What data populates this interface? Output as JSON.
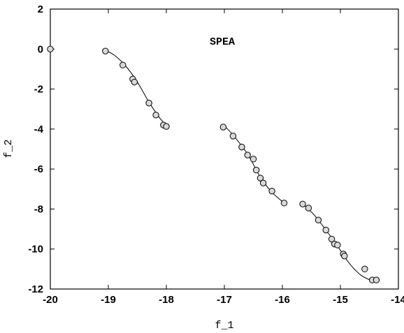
{
  "chart_data": {
    "type": "scatter",
    "title": "SPEA",
    "xlabel": "f_1",
    "ylabel": "f_2",
    "xlim": [
      -20,
      -14
    ],
    "ylim": [
      -12,
      2
    ],
    "xticks": [
      -20,
      -19,
      -18,
      -17,
      -16,
      -15,
      -14
    ],
    "yticks": [
      2,
      0,
      -2,
      -4,
      -6,
      -8,
      -10,
      -12
    ],
    "grid": false,
    "points": [
      {
        "x": -20.0,
        "y": 0.0
      },
      {
        "x": -19.05,
        "y": -0.1
      },
      {
        "x": -18.75,
        "y": -0.8
      },
      {
        "x": -18.58,
        "y": -1.5
      },
      {
        "x": -18.55,
        "y": -1.65
      },
      {
        "x": -18.3,
        "y": -2.7
      },
      {
        "x": -18.18,
        "y": -3.3
      },
      {
        "x": -18.05,
        "y": -3.8
      },
      {
        "x": -18.0,
        "y": -3.87
      },
      {
        "x": -17.02,
        "y": -3.9
      },
      {
        "x": -16.85,
        "y": -4.35
      },
      {
        "x": -16.7,
        "y": -4.9
      },
      {
        "x": -16.6,
        "y": -5.3
      },
      {
        "x": -16.5,
        "y": -5.5
      },
      {
        "x": -16.45,
        "y": -6.05
      },
      {
        "x": -16.38,
        "y": -6.45
      },
      {
        "x": -16.33,
        "y": -6.7
      },
      {
        "x": -16.18,
        "y": -7.1
      },
      {
        "x": -15.97,
        "y": -7.7
      },
      {
        "x": -15.65,
        "y": -7.75
      },
      {
        "x": -15.55,
        "y": -7.95
      },
      {
        "x": -15.38,
        "y": -8.55
      },
      {
        "x": -15.25,
        "y": -9.05
      },
      {
        "x": -15.15,
        "y": -9.5
      },
      {
        "x": -15.1,
        "y": -9.75
      },
      {
        "x": -15.05,
        "y": -9.8
      },
      {
        "x": -14.95,
        "y": -10.25
      },
      {
        "x": -14.93,
        "y": -10.35
      },
      {
        "x": -14.58,
        "y": -11.0
      },
      {
        "x": -14.45,
        "y": -11.55
      },
      {
        "x": -14.38,
        "y": -11.55
      }
    ],
    "curves": [
      {
        "x": [
          -19.1,
          -18.9,
          -18.7,
          -18.5,
          -18.3,
          -18.1,
          -17.95
        ],
        "y": [
          0.0,
          -0.3,
          -0.85,
          -1.65,
          -2.65,
          -3.5,
          -3.9
        ]
      },
      {
        "x": [
          -17.03,
          -16.85,
          -16.6,
          -16.4,
          -16.2,
          -15.97
        ],
        "y": [
          -3.75,
          -4.3,
          -5.25,
          -6.3,
          -7.1,
          -7.7
        ]
      },
      {
        "x": [
          -15.65,
          -15.45,
          -15.25,
          -15.05,
          -14.85,
          -14.65,
          -14.45
        ],
        "y": [
          -7.75,
          -8.3,
          -9.05,
          -9.85,
          -10.7,
          -11.3,
          -11.6
        ]
      }
    ]
  }
}
